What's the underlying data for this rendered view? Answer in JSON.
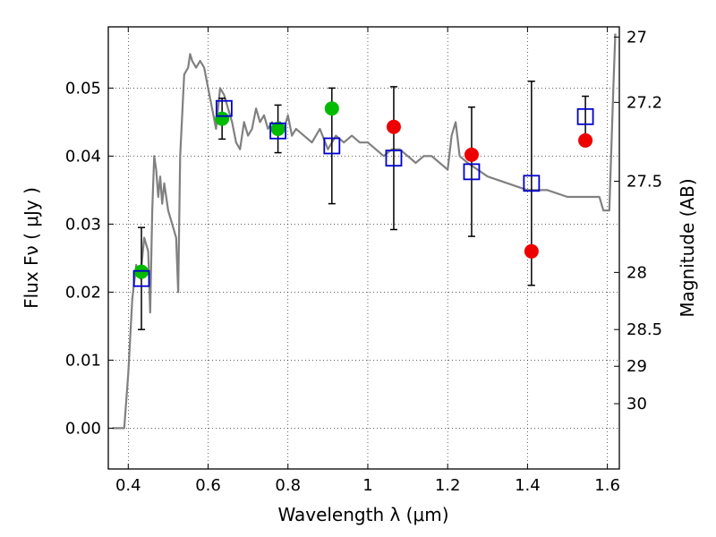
{
  "chart_data": {
    "type": "scatter",
    "title": "",
    "xlabel": "Wavelength  λ (μm)",
    "ylabel": "Flux  Fν  ( μJy )",
    "y2label": "Magnitude (AB)",
    "xlim": [
      0.35,
      1.63
    ],
    "ylim": [
      -0.006,
      0.059
    ],
    "grid": true,
    "x_ticks": [
      {
        "v": 0.4,
        "label": "0.4"
      },
      {
        "v": 0.6,
        "label": "0.6"
      },
      {
        "v": 0.8,
        "label": "0.8"
      },
      {
        "v": 1.0,
        "label": "1"
      },
      {
        "v": 1.2,
        "label": "1.2"
      },
      {
        "v": 1.4,
        "label": "1.4"
      },
      {
        "v": 1.6,
        "label": "1.6"
      }
    ],
    "y_ticks": [
      {
        "v": 0.0,
        "label": "0.00"
      },
      {
        "v": 0.01,
        "label": "0.01"
      },
      {
        "v": 0.02,
        "label": "0.02"
      },
      {
        "v": 0.03,
        "label": "0.03"
      },
      {
        "v": 0.04,
        "label": "0.04"
      },
      {
        "v": 0.05,
        "label": "0.05"
      }
    ],
    "mag_ticks": [
      {
        "label": "27",
        "flux": 0.0575
      },
      {
        "label": "27.2",
        "flux": 0.0479
      },
      {
        "label": "27.5",
        "flux": 0.0363
      },
      {
        "label": "28",
        "flux": 0.0229
      },
      {
        "label": "28.5",
        "flux": 0.0145
      },
      {
        "label": "29",
        "flux": 0.0091
      },
      {
        "label": "30",
        "flux": 0.0036
      }
    ],
    "series": [
      {
        "kind": "line",
        "color": "#808080",
        "points": [
          [
            0.36,
            0.0
          ],
          [
            0.39,
            0.0
          ],
          [
            0.4,
            0.008
          ],
          [
            0.41,
            0.019
          ],
          [
            0.42,
            0.024
          ],
          [
            0.43,
            0.022
          ],
          [
            0.44,
            0.028
          ],
          [
            0.45,
            0.026
          ],
          [
            0.455,
            0.017
          ],
          [
            0.46,
            0.032
          ],
          [
            0.465,
            0.04
          ],
          [
            0.47,
            0.038
          ],
          [
            0.475,
            0.034
          ],
          [
            0.48,
            0.037
          ],
          [
            0.485,
            0.033
          ],
          [
            0.49,
            0.036
          ],
          [
            0.5,
            0.032
          ],
          [
            0.51,
            0.03
          ],
          [
            0.52,
            0.028
          ],
          [
            0.525,
            0.02
          ],
          [
            0.53,
            0.04
          ],
          [
            0.54,
            0.052
          ],
          [
            0.55,
            0.053
          ],
          [
            0.555,
            0.055
          ],
          [
            0.56,
            0.054
          ],
          [
            0.57,
            0.053
          ],
          [
            0.58,
            0.054
          ],
          [
            0.59,
            0.053
          ],
          [
            0.6,
            0.05
          ],
          [
            0.61,
            0.047
          ],
          [
            0.62,
            0.044
          ],
          [
            0.63,
            0.05
          ],
          [
            0.64,
            0.049
          ],
          [
            0.65,
            0.047
          ],
          [
            0.66,
            0.045
          ],
          [
            0.67,
            0.042
          ],
          [
            0.68,
            0.041
          ],
          [
            0.69,
            0.045
          ],
          [
            0.7,
            0.043
          ],
          [
            0.71,
            0.044
          ],
          [
            0.72,
            0.047
          ],
          [
            0.73,
            0.045
          ],
          [
            0.74,
            0.046
          ],
          [
            0.75,
            0.044
          ],
          [
            0.76,
            0.045
          ],
          [
            0.77,
            0.044
          ],
          [
            0.78,
            0.045
          ],
          [
            0.79,
            0.044
          ],
          [
            0.8,
            0.046
          ],
          [
            0.81,
            0.043
          ],
          [
            0.82,
            0.044
          ],
          [
            0.84,
            0.043
          ],
          [
            0.86,
            0.042
          ],
          [
            0.88,
            0.044
          ],
          [
            0.9,
            0.041
          ],
          [
            0.92,
            0.043
          ],
          [
            0.94,
            0.042
          ],
          [
            0.96,
            0.043
          ],
          [
            0.98,
            0.042
          ],
          [
            1.0,
            0.042
          ],
          [
            1.02,
            0.041
          ],
          [
            1.04,
            0.04
          ],
          [
            1.06,
            0.041
          ],
          [
            1.08,
            0.041
          ],
          [
            1.1,
            0.04
          ],
          [
            1.12,
            0.039
          ],
          [
            1.14,
            0.04
          ],
          [
            1.16,
            0.04
          ],
          [
            1.18,
            0.039
          ],
          [
            1.2,
            0.038
          ],
          [
            1.21,
            0.043
          ],
          [
            1.22,
            0.045
          ],
          [
            1.23,
            0.04
          ],
          [
            1.25,
            0.039
          ],
          [
            1.3,
            0.037
          ],
          [
            1.35,
            0.036
          ],
          [
            1.4,
            0.035
          ],
          [
            1.45,
            0.035
          ],
          [
            1.5,
            0.034
          ],
          [
            1.55,
            0.034
          ],
          [
            1.58,
            0.034
          ],
          [
            1.59,
            0.032
          ],
          [
            1.605,
            0.032
          ],
          [
            1.615,
            0.05
          ],
          [
            1.62,
            0.058
          ]
        ]
      },
      {
        "kind": "markers",
        "marker": "circle",
        "color": "#00bb00",
        "points": [
          {
            "x": 0.433,
            "y": 0.023
          },
          {
            "x": 0.635,
            "y": 0.0455,
            "err": 0.003
          },
          {
            "x": 0.775,
            "y": 0.044,
            "err": 0.0035
          },
          {
            "x": 0.91,
            "y": 0.047
          }
        ]
      },
      {
        "kind": "markers",
        "marker": "circle",
        "color": "#ee0000",
        "points": [
          {
            "x": 1.065,
            "y": 0.0443
          },
          {
            "x": 1.26,
            "y": 0.0402
          },
          {
            "x": 1.41,
            "y": 0.026
          },
          {
            "x": 1.545,
            "y": 0.0423
          }
        ]
      },
      {
        "kind": "markers",
        "marker": "open-square",
        "color": "#0000cc",
        "points": [
          {
            "x": 0.433,
            "y": 0.022,
            "err": 0.0075
          },
          {
            "x": 0.64,
            "y": 0.047
          },
          {
            "x": 0.775,
            "y": 0.0437
          },
          {
            "x": 0.91,
            "y": 0.0415,
            "err": 0.0085
          },
          {
            "x": 1.065,
            "y": 0.0397,
            "err": 0.0105
          },
          {
            "x": 1.26,
            "y": 0.0377,
            "err": 0.0095
          },
          {
            "x": 1.41,
            "y": 0.036,
            "err": 0.015
          },
          {
            "x": 1.545,
            "y": 0.0458,
            "err": 0.003
          }
        ]
      }
    ]
  }
}
